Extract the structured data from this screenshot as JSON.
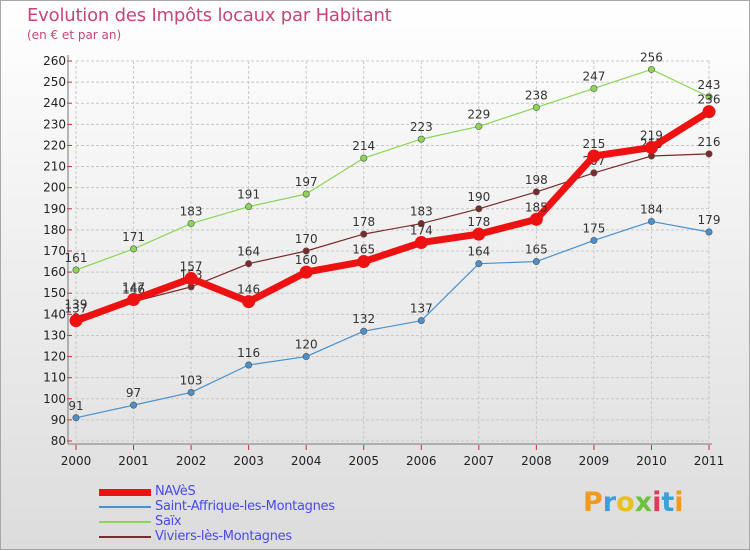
{
  "chart_data": {
    "type": "line",
    "title": "Evolution des Impôts locaux par Habitant",
    "subtitle": "(en € et par an)",
    "x": [
      "2000",
      "2001",
      "2002",
      "2003",
      "2004",
      "2005",
      "2006",
      "2007",
      "2008",
      "2009",
      "2010",
      "2011"
    ],
    "ylim": [
      80,
      260
    ],
    "yticks": [
      80,
      90,
      100,
      110,
      120,
      130,
      140,
      150,
      160,
      170,
      180,
      190,
      200,
      210,
      220,
      230,
      240,
      250,
      260
    ],
    "grid": true,
    "legend_position": "bottom-left",
    "series": [
      {
        "name": "Saint-Affrique-les-Montagnes",
        "color": "#4a90cc",
        "width": 1.2,
        "values": [
          91,
          97,
          103,
          116,
          120,
          132,
          137,
          164,
          165,
          175,
          184,
          179
        ]
      },
      {
        "name": "Saïx",
        "color": "#8cd655",
        "width": 1.2,
        "values": [
          161,
          171,
          183,
          191,
          197,
          214,
          223,
          229,
          238,
          247,
          256,
          243
        ]
      },
      {
        "name": "Viviers-lès-Montagnes",
        "color": "#7a2b2b",
        "width": 1.2,
        "values": [
          139,
          146,
          153,
          164,
          170,
          178,
          183,
          190,
          198,
          207,
          215,
          216
        ]
      },
      {
        "name": "NAVèS",
        "color": "#ee1111",
        "width": 7,
        "values": [
          137,
          147,
          157,
          146,
          160,
          165,
          174,
          178,
          185,
          215,
          219,
          236
        ]
      }
    ]
  },
  "legend_order": [
    "NAVèS",
    "Saint-Affrique-les-Montagnes",
    "Saïx",
    "Viviers-lès-Montagnes"
  ],
  "logo": {
    "text": "Proxiti"
  }
}
